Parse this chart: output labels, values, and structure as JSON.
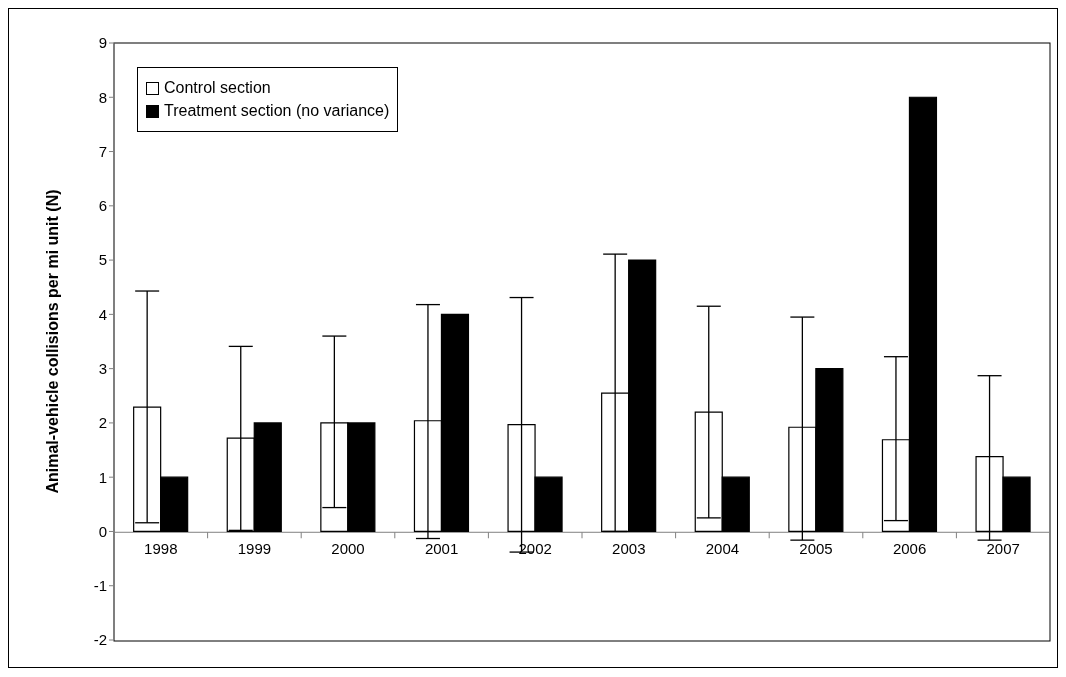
{
  "chart_data": {
    "type": "bar",
    "ylabel": "Animal-vehicle collisions per mi unit (N)",
    "categories": [
      "1998",
      "1999",
      "2000",
      "2001",
      "2002",
      "2003",
      "2004",
      "2005",
      "2006",
      "2007"
    ],
    "series": [
      {
        "name": "Control section",
        "color": "#ffffff",
        "values": [
          2.29,
          1.72,
          2.0,
          2.04,
          1.97,
          2.55,
          2.2,
          1.92,
          1.69,
          1.38
        ],
        "errors": [
          [
            0.16,
            4.43
          ],
          [
            0.02,
            3.41
          ],
          [
            0.44,
            3.6
          ],
          [
            -0.13,
            4.18
          ],
          [
            -0.38,
            4.31
          ],
          [
            0,
            5.11
          ],
          [
            0.25,
            4.15
          ],
          [
            -0.16,
            3.95
          ],
          [
            0.2,
            3.22
          ],
          [
            -0.16,
            2.87
          ]
        ]
      },
      {
        "name": "Treatment section (no variance)",
        "color": "#000000",
        "values": [
          1,
          2,
          2,
          4,
          1,
          5,
          1,
          3,
          8,
          1
        ]
      }
    ],
    "ylim": [
      -2,
      9
    ],
    "yticks": [
      -2,
      -1,
      0,
      1,
      2,
      3,
      4,
      5,
      6,
      7,
      8,
      9
    ],
    "grid": false,
    "legend": "top left"
  }
}
